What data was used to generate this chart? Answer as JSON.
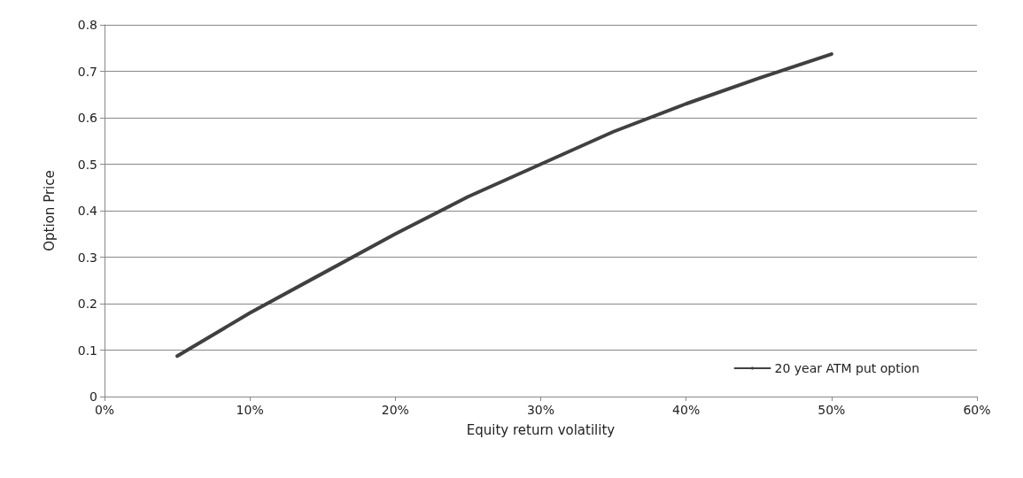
{
  "chart_data": {
    "type": "line",
    "xlabel": "Equity return volatility",
    "ylabel": "Option Price",
    "x": [
      5,
      10,
      15,
      20,
      25,
      30,
      35,
      40,
      45,
      50
    ],
    "series": [
      {
        "name": "20 year ATM put option",
        "color": "#404040",
        "values": [
          0.087,
          0.18,
          0.265,
          0.35,
          0.43,
          0.5,
          0.57,
          0.63,
          0.685,
          0.737
        ]
      }
    ],
    "xlim": [
      0,
      60
    ],
    "xticks": [
      {
        "value": 0,
        "label": "0%"
      },
      {
        "value": 10,
        "label": "10%"
      },
      {
        "value": 20,
        "label": "20%"
      },
      {
        "value": 30,
        "label": "30%"
      },
      {
        "value": 40,
        "label": "40%"
      },
      {
        "value": 50,
        "label": "50%"
      },
      {
        "value": 60,
        "label": "60%"
      }
    ],
    "ylim": [
      0,
      0.8
    ],
    "yticks": [
      0,
      0.1,
      0.2,
      0.3,
      0.4,
      0.5,
      0.6,
      0.7,
      0.8
    ],
    "grid": "y",
    "legend": "bottom right",
    "marker": "none",
    "line_style": "solid"
  }
}
